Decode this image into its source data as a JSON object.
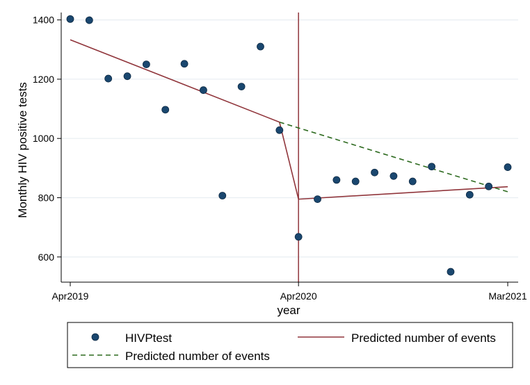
{
  "chart_data": {
    "type": "scatter",
    "title": "",
    "xlabel": "year",
    "ylabel": "Monthly HIV positive tests",
    "ylim": [
      515,
      1425
    ],
    "grid": true,
    "x_ticks": [
      {
        "index": 0,
        "label": "Apr2019"
      },
      {
        "index": 12,
        "label": "Apr2020"
      },
      {
        "index": 23,
        "label": "Mar2021"
      }
    ],
    "y_ticks": [
      600,
      800,
      1000,
      1200,
      1400
    ],
    "intervention_index": 12,
    "series": [
      {
        "name": "HIVPtest",
        "kind": "points",
        "color": "#1a476f",
        "x": [
          0,
          1,
          2,
          3,
          4,
          5,
          6,
          7,
          8,
          9,
          10,
          11,
          12,
          13,
          14,
          15,
          16,
          17,
          18,
          19,
          20,
          21,
          22,
          23
        ],
        "values": [
          1403,
          1399,
          1202,
          1210,
          1250,
          1097,
          1252,
          1163,
          807,
          1175,
          1310,
          1028,
          668,
          795,
          860,
          855,
          885,
          873,
          855,
          905,
          550,
          810,
          838,
          903
        ]
      },
      {
        "name": "Predicted number of events",
        "kind": "solid-line",
        "color": "#90353b",
        "segments": [
          {
            "x": [
              0,
              11
            ],
            "values": [
              1333,
              1055
            ]
          },
          {
            "x": [
              11,
              12
            ],
            "values": [
              1055,
              795
            ]
          },
          {
            "x": [
              12,
              23
            ],
            "values": [
              795,
              837
            ]
          }
        ]
      },
      {
        "name": "Predicted number of events",
        "kind": "dashed-line",
        "color": "#2d6a1f",
        "segments": [
          {
            "x": [
              11,
              23
            ],
            "values": [
              1055,
              820
            ]
          }
        ]
      }
    ],
    "legend": {
      "placement": "bottom",
      "entries": [
        "HIVPtest",
        "Predicted number of events",
        "Predicted number of events"
      ]
    }
  }
}
